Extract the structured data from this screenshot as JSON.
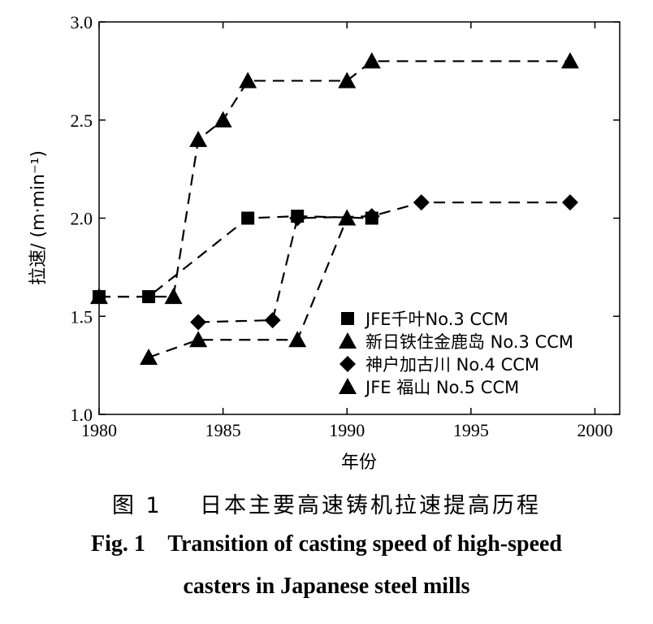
{
  "chart_data": {
    "type": "line",
    "xlabel": "年份",
    "ylabel": "拉速/ (m·min⁻¹)",
    "xlim": [
      1980,
      2001
    ],
    "ylim": [
      1.0,
      3.0
    ],
    "xticks": [
      1980,
      1985,
      1990,
      1995,
      2000
    ],
    "yticks": [
      "1.0",
      "1.5",
      "2.0",
      "2.5",
      "3.0"
    ],
    "grid": false,
    "legend_position": "bottom-right",
    "series": [
      {
        "name": "JFE千叶No.3 CCM",
        "marker": "square",
        "x": [
          1980,
          1982,
          1986,
          1988,
          1991
        ],
        "y": [
          1.6,
          1.6,
          2.0,
          2.01,
          2.0
        ]
      },
      {
        "name": "新日铁住金鹿岛 No.3 CCM",
        "marker": "triangle",
        "x": [
          1980,
          1983,
          1984,
          1985,
          1986,
          1990,
          1991,
          1999
        ],
        "y": [
          1.6,
          1.6,
          2.4,
          2.5,
          2.7,
          2.7,
          2.8,
          2.8
        ]
      },
      {
        "name": "神户加古川 No.4 CCM",
        "marker": "diamond",
        "x": [
          1984,
          1987,
          1988,
          1991,
          1993,
          1999
        ],
        "y": [
          1.47,
          1.48,
          2.0,
          2.01,
          2.08,
          2.08
        ]
      },
      {
        "name": "JFE 福山 No.5 CCM",
        "marker": "triangle",
        "x": [
          1982,
          1984,
          1988,
          1990
        ],
        "y": [
          1.29,
          1.38,
          1.38,
          2.0
        ]
      }
    ]
  },
  "caption": {
    "cn": "图 1    日本主要高速铸机拉速提高历程",
    "en_line1": "Fig. 1    Transition of casting speed of high-speed",
    "en_line2": "casters in Japanese steel mills"
  }
}
